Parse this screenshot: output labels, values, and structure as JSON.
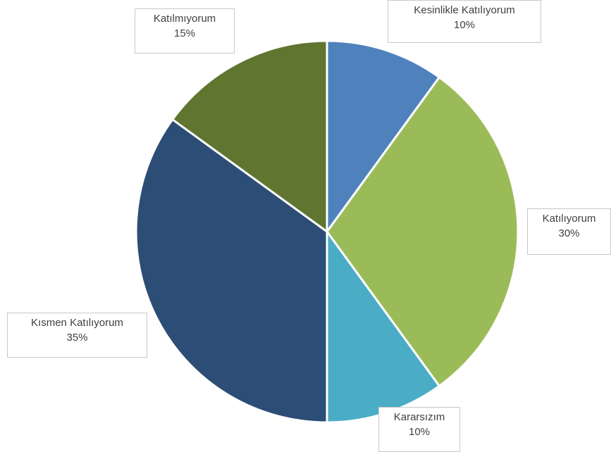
{
  "chart_data": {
    "type": "pie",
    "slices": [
      {
        "label": "Kesinlikle Katılıyorum",
        "value": 10,
        "display": "10%",
        "color": "#4f81bd"
      },
      {
        "label": "Katılıyorum",
        "value": 30,
        "display": "30%",
        "color": "#9bbb59"
      },
      {
        "label": "Kararsızım",
        "value": 10,
        "display": "10%",
        "color": "#4bacc6"
      },
      {
        "label": "Kısmen Katılıyorum",
        "value": 35,
        "display": "35%",
        "color": "#2c4d75"
      },
      {
        "label": "Katılmıyorum",
        "value": 15,
        "display": "15%",
        "color": "#5f7530"
      }
    ],
    "start": "top",
    "direction": "clockwise",
    "legend": "none",
    "data_labels": "boxed callouts outside slices"
  }
}
